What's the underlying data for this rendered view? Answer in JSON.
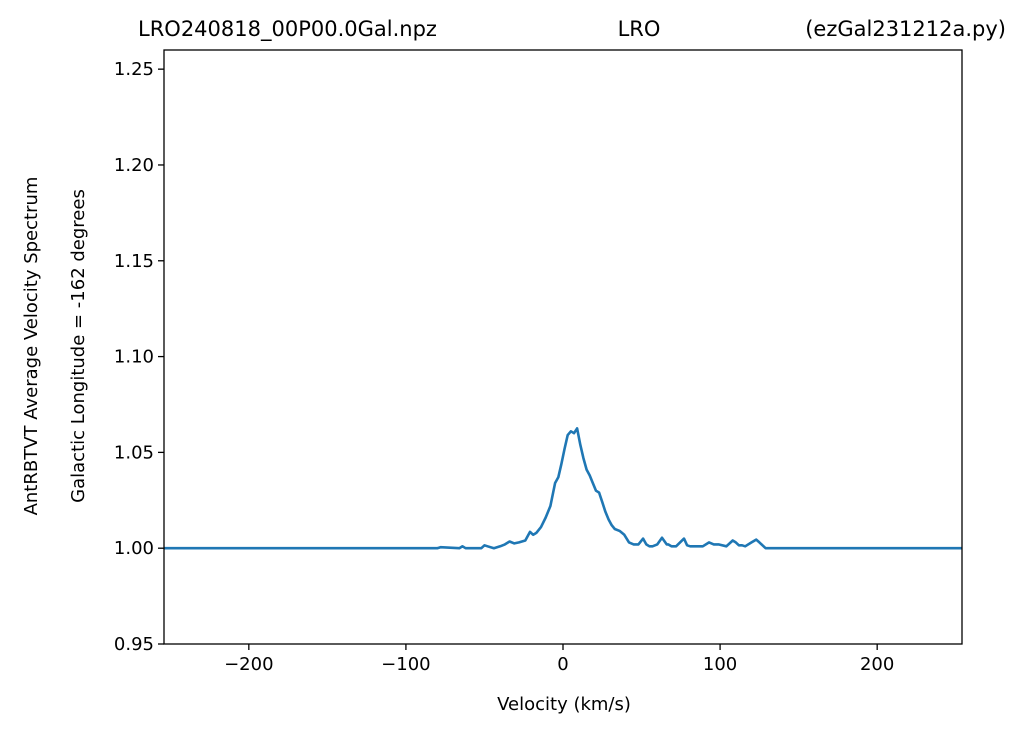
{
  "chart_data": {
    "type": "line",
    "title_parts": {
      "left": "LRO240818_00P00.0Gal.npz",
      "center": "LRO",
      "right": "(ezGal231212a.py)"
    },
    "xlabel": "Velocity (km/s)",
    "ylabel_line1": "AntRBTVT Average Velocity Spectrum",
    "ylabel_line2": "Galactic Longitude = -162 degrees",
    "xlim": [
      -254,
      254
    ],
    "ylim": [
      0.95,
      1.26
    ],
    "xticks": [
      -200,
      -100,
      0,
      100,
      200
    ],
    "xtick_labels": [
      "−200",
      "−100",
      "0",
      "100",
      "200"
    ],
    "yticks": [
      0.95,
      1.0,
      1.05,
      1.1,
      1.15,
      1.2,
      1.25
    ],
    "ytick_labels": [
      "0.95",
      "1.00",
      "1.05",
      "1.10",
      "1.15",
      "1.20",
      "1.25"
    ],
    "grid": false,
    "series": [
      {
        "color": "#1f77b4",
        "x": [
          -254,
          -80,
          -78,
          -66,
          -64,
          -62,
          -52,
          -50,
          -48,
          -44,
          -40,
          -37,
          -34,
          -31,
          -28,
          -24,
          -21,
          -19,
          -17,
          -14,
          -11,
          -8,
          -5,
          -3,
          -1,
          1,
          3,
          5,
          7,
          9,
          11,
          13,
          15,
          17,
          19,
          21,
          23,
          25,
          27,
          29,
          31,
          33,
          36,
          39,
          42,
          45,
          48,
          51,
          53,
          55,
          57,
          60,
          63,
          66,
          67,
          69,
          72,
          77,
          79,
          81,
          84,
          89,
          93,
          96,
          99,
          104,
          108,
          110,
          112,
          114,
          116,
          120,
          123,
          125,
          127,
          129,
          131,
          254
        ],
        "y": [
          1.0,
          1.0,
          1.0005,
          1.0,
          1.001,
          1.0,
          1.0,
          1.0015,
          1.001,
          1.0,
          1.001,
          1.002,
          1.0035,
          1.0025,
          1.003,
          1.004,
          1.0085,
          1.007,
          1.008,
          1.011,
          1.016,
          1.022,
          1.034,
          1.037,
          1.044,
          1.052,
          1.059,
          1.061,
          1.06,
          1.0625,
          1.054,
          1.047,
          1.041,
          1.038,
          1.034,
          1.03,
          1.029,
          1.024,
          1.019,
          1.015,
          1.012,
          1.01,
          1.009,
          1.007,
          1.003,
          1.002,
          1.002,
          1.005,
          1.002,
          1.001,
          1.001,
          1.002,
          1.0055,
          1.002,
          1.002,
          1.001,
          1.001,
          1.005,
          1.0015,
          1.001,
          1.001,
          1.001,
          1.003,
          1.002,
          1.002,
          1.001,
          1.004,
          1.003,
          1.0015,
          1.0015,
          1.001,
          1.003,
          1.0045,
          1.003,
          1.0015,
          1.0,
          1.0,
          1.0
        ]
      }
    ]
  }
}
